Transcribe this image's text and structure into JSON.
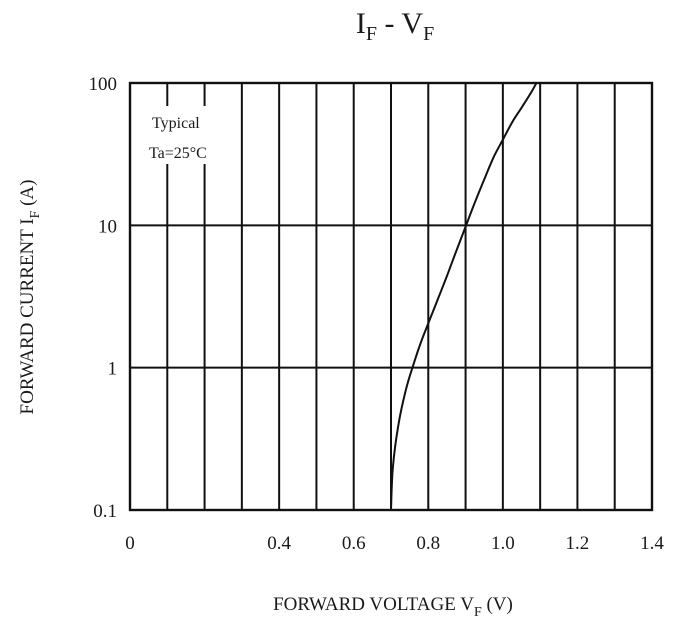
{
  "chart_data": {
    "type": "line",
    "title": {
      "main1": "I",
      "sub1": "F",
      "dash": " - ",
      "main2": "V",
      "sub2": "F"
    },
    "xlabel": {
      "text": "FORWARD VOLTAGE V",
      "sub": "F",
      "unit": " (V)"
    },
    "ylabel": {
      "text": "FORWARD CURRENT I",
      "sub": "F",
      "unit": " (A)"
    },
    "annotation": [
      "Typical",
      "Ta=25°C"
    ],
    "x_scale": "linear",
    "y_scale": "log",
    "xlim": [
      0,
      1.4
    ],
    "ylim": [
      0.1,
      100
    ],
    "x_ticks": [
      "0",
      "0.4",
      "0.6",
      "0.8",
      "1.0",
      "1.2",
      "1.4"
    ],
    "x_tick_values": [
      0,
      0.4,
      0.6,
      0.8,
      1.0,
      1.2,
      1.4
    ],
    "x_grid_values": [
      0.1,
      0.2,
      0.3,
      0.4,
      0.5,
      0.6,
      0.7,
      0.8,
      0.9,
      1.0,
      1.1,
      1.2,
      1.3
    ],
    "y_ticks": [
      "100",
      "10",
      "1",
      "0.1"
    ],
    "y_tick_values": [
      100,
      10,
      1,
      0.1
    ],
    "grid": true,
    "series": [
      {
        "x": [
          0.7,
          0.705,
          0.72,
          0.74,
          0.76,
          0.78,
          0.8,
          0.825,
          0.85,
          0.875,
          0.9,
          0.925,
          0.95,
          0.975,
          1.0,
          1.025,
          1.05,
          1.075,
          1.09
        ],
        "y": [
          0.1,
          0.2,
          0.4,
          0.7,
          1.05,
          1.5,
          2.05,
          3.0,
          4.4,
          6.6,
          9.8,
          14.5,
          21,
          30,
          40,
          53,
          67,
          85,
          100
        ]
      }
    ]
  }
}
